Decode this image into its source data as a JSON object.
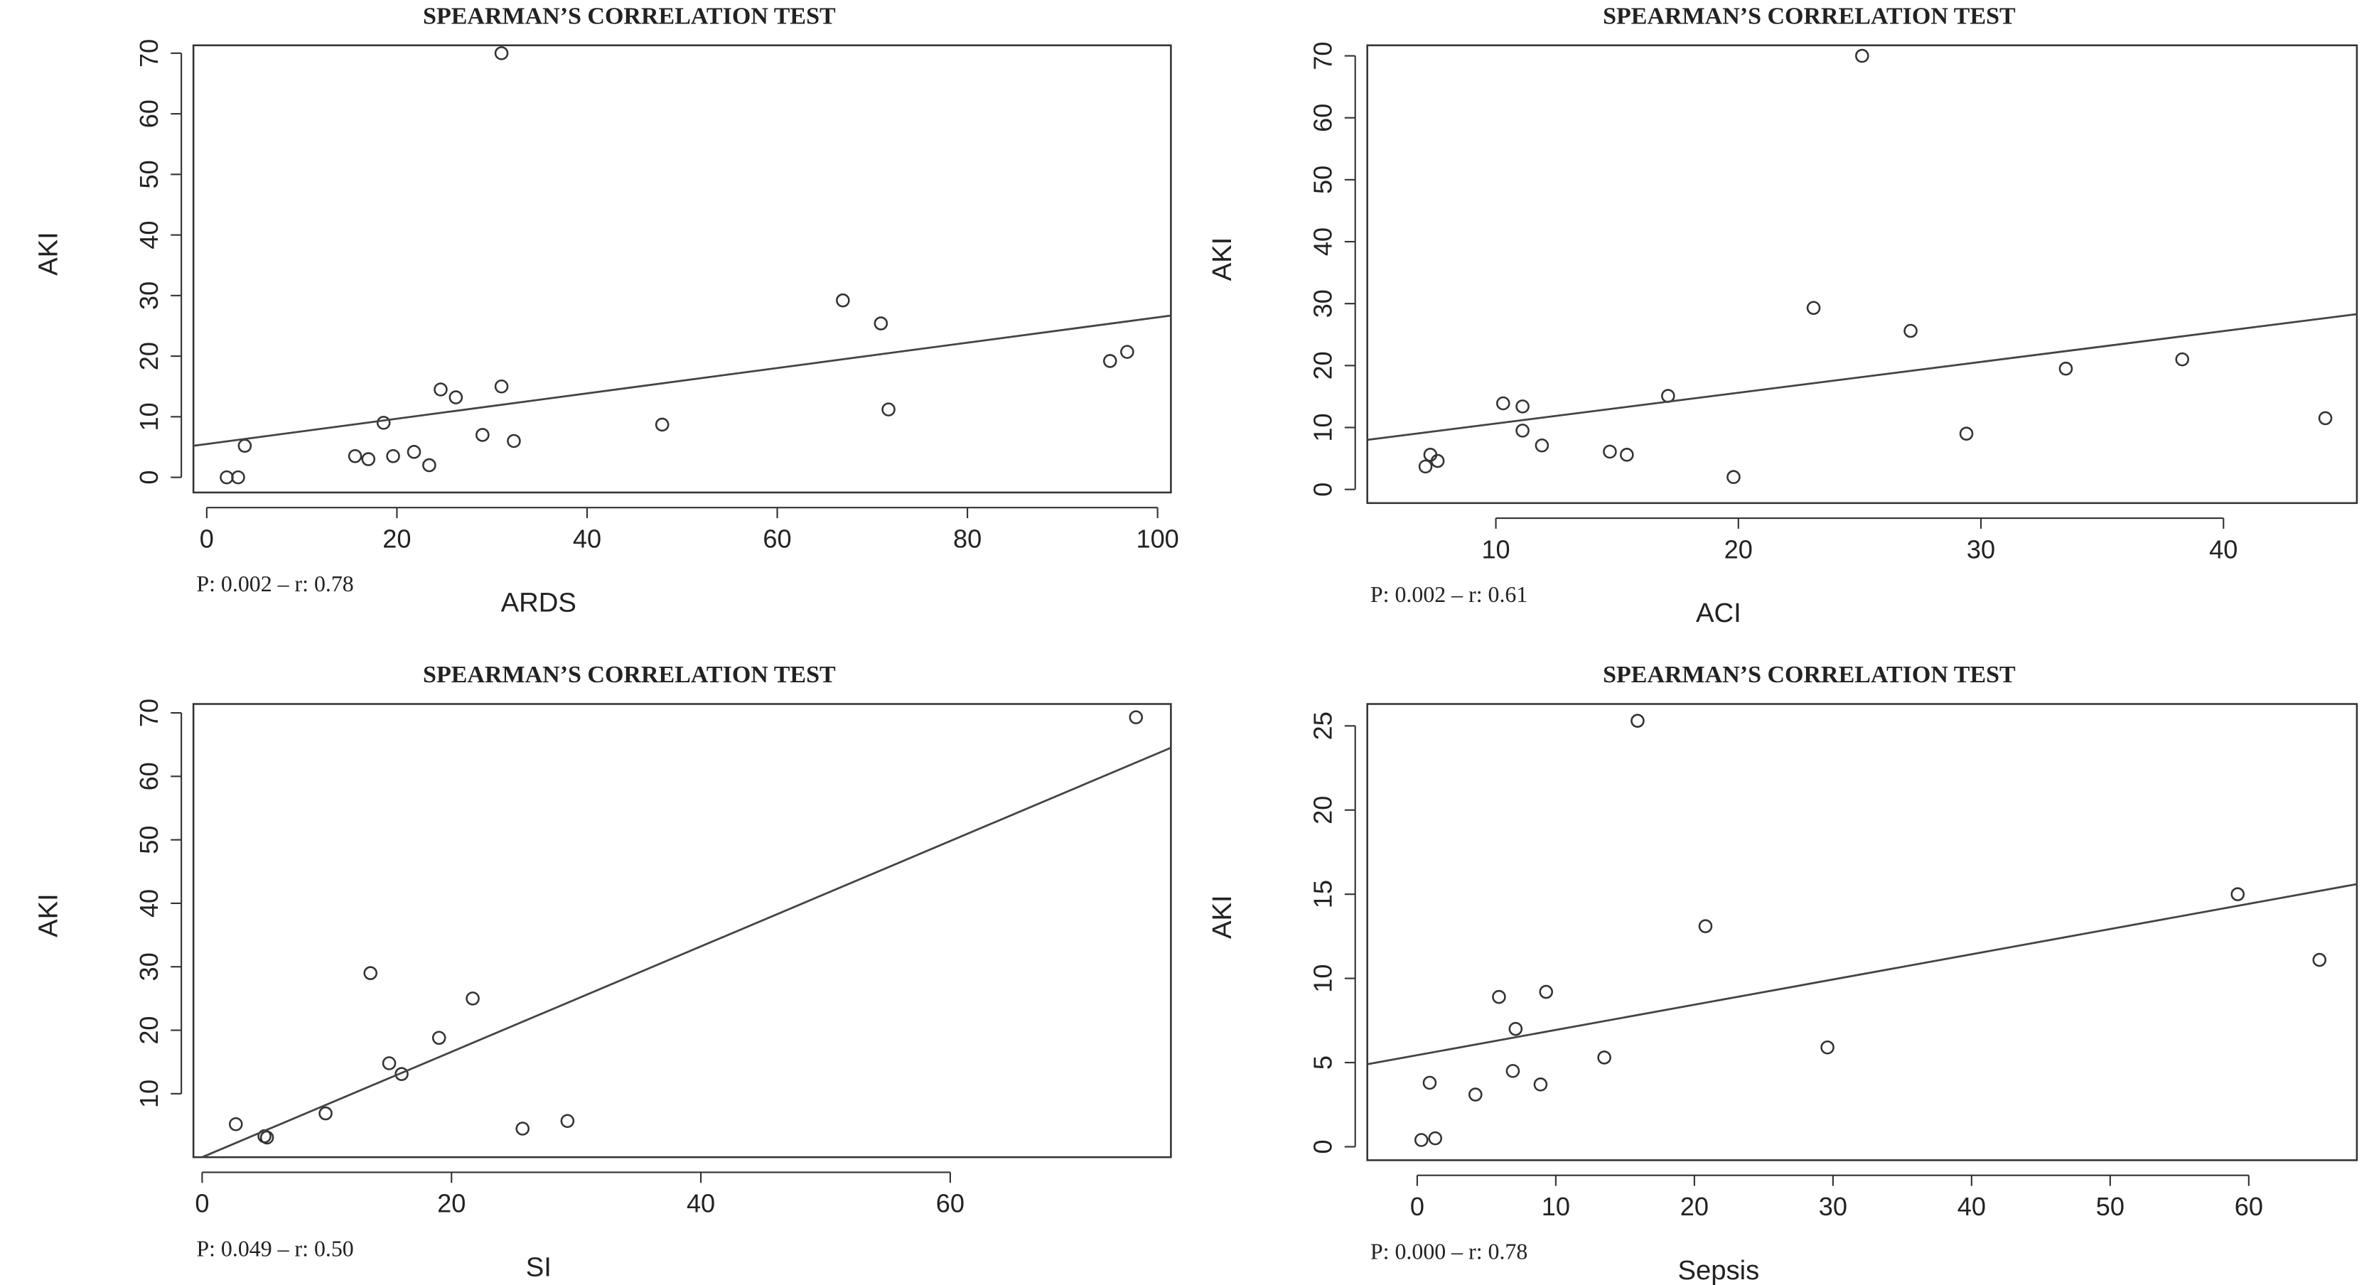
{
  "chart_data": [
    {
      "type": "scatter",
      "title": "SPEARMAN’S CORRELATION TEST",
      "xlabel": "ARDS",
      "ylabel": "AKI",
      "annotation": "P: 0.002 – r: 0.78",
      "x": [
        2.1,
        3.3,
        4,
        15.6,
        17,
        18.6,
        19.6,
        21.8,
        23.4,
        24.6,
        26.2,
        29,
        31,
        31,
        32.3,
        47.9,
        66.9,
        70.9,
        71.7,
        95,
        96.8
      ],
      "values": [
        0,
        0,
        5.2,
        3.5,
        3,
        9,
        3.5,
        4.2,
        2,
        14.5,
        13.2,
        7,
        70,
        15,
        6,
        8.7,
        29.2,
        25.4,
        11.2,
        19.2,
        20.7
      ],
      "trendline": {
        "x": [
          -1.4,
          101.4
        ],
        "y": [
          5.2,
          26.7
        ]
      },
      "xlim": [
        -1.4,
        101.4
      ],
      "ylim": [
        -2.5,
        71.3
      ],
      "xticks": [
        0,
        20,
        40,
        60,
        80,
        100
      ],
      "yticks": [
        0,
        10,
        20,
        30,
        40,
        50,
        60,
        70
      ]
    },
    {
      "type": "scatter",
      "title": "SPEARMAN’S CORRELATION TEST",
      "xlabel": "ACI",
      "ylabel": "AKI",
      "annotation": "P: 0.002 – r: 0.61",
      "x": [
        7.1,
        7.3,
        7.6,
        10.3,
        11.1,
        11.1,
        11.9,
        14.7,
        15.4,
        17.1,
        19.8,
        23.1,
        25.1,
        27.1,
        29.4,
        33.5,
        38.3,
        44.2
      ],
      "values": [
        3.7,
        5.6,
        4.6,
        13.9,
        13.4,
        9.5,
        7.1,
        6.1,
        5.6,
        15.1,
        2,
        29.3,
        70,
        25.6,
        9,
        19.5,
        21,
        11.5
      ],
      "trendline": {
        "x": [
          4.7,
          45.5
        ],
        "y": [
          8.0,
          28.3
        ]
      },
      "xlim": [
        4.7,
        45.5
      ],
      "ylim": [
        -2.2,
        71.7
      ],
      "xticks": [
        10,
        20,
        30,
        40
      ],
      "yticks": [
        0,
        10,
        20,
        30,
        40,
        50,
        60,
        70
      ]
    },
    {
      "type": "scatter",
      "title": "SPEARMAN’S CORRELATION TEST",
      "xlabel": "SI",
      "ylabel": "AKI",
      "annotation": "P: 0.049 – r: 0.50",
      "x": [
        2.7,
        5,
        5.2,
        9.9,
        13.5,
        15,
        16,
        19,
        21.7,
        25.7,
        29.3,
        74.9
      ],
      "values": [
        5.2,
        3.3,
        3.1,
        6.9,
        29,
        14.8,
        13.1,
        18.8,
        25,
        4.5,
        5.7,
        69.3
      ],
      "trendline": {
        "x": [
          0,
          77.7
        ],
        "y": [
          0,
          64.5
        ]
      },
      "xlim": [
        -0.7,
        77.7
      ],
      "ylim": [
        0,
        71.4
      ],
      "xticks": [
        0,
        20,
        40,
        60
      ],
      "yticks": [
        10,
        20,
        30,
        40,
        50,
        60,
        70
      ]
    },
    {
      "type": "scatter",
      "title": "SPEARMAN’S CORRELATION TEST",
      "xlabel": "Sepsis",
      "ylabel": "AKI",
      "annotation": "P: 0.000 – r: 0.78",
      "x": [
        0.3,
        1.3,
        0.9,
        4.2,
        5.9,
        7.1,
        6.9,
        8.9,
        9.3,
        13.5,
        15.9,
        20.8,
        29.6,
        59.2,
        65.1
      ],
      "values": [
        0.4,
        0.5,
        3.8,
        3.1,
        8.9,
        7,
        4.5,
        3.7,
        9.2,
        5.3,
        25.3,
        13.1,
        5.9,
        15,
        11.1
      ],
      "trendline": {
        "x": [
          -3.6,
          67.8
        ],
        "y": [
          4.9,
          15.6
        ]
      },
      "xlim": [
        -3.6,
        67.8
      ],
      "ylim": [
        -0.8,
        26.3
      ],
      "xticks": [
        0,
        10,
        20,
        30,
        40,
        50,
        60
      ],
      "yticks": [
        0,
        5,
        10,
        15,
        20,
        25
      ]
    }
  ]
}
